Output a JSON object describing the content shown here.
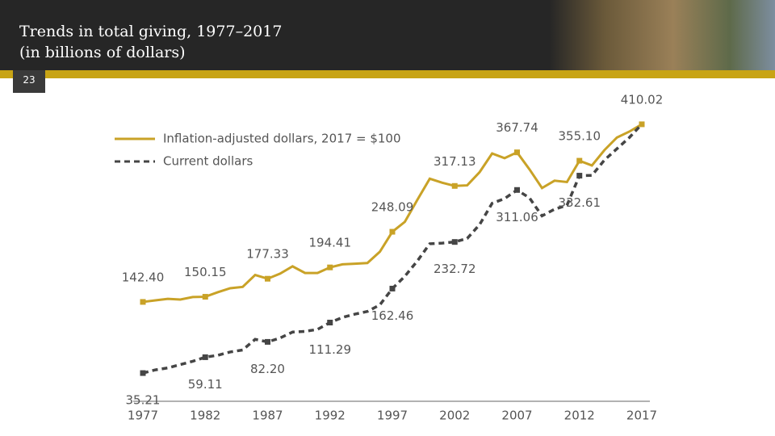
{
  "header": {
    "title": "Trends in total giving, 1977–2017",
    "subtitle": "(in billions of dollars)",
    "page_number": "23"
  },
  "chart_data": {
    "type": "line",
    "x": [
      1977,
      1978,
      1979,
      1980,
      1981,
      1982,
      1983,
      1984,
      1985,
      1986,
      1987,
      1988,
      1989,
      1990,
      1991,
      1992,
      1993,
      1994,
      1995,
      1996,
      1997,
      1998,
      1999,
      2000,
      2001,
      2002,
      2003,
      2004,
      2005,
      2006,
      2007,
      2008,
      2009,
      2010,
      2011,
      2012,
      2013,
      2014,
      2015,
      2016,
      2017
    ],
    "xlim": [
      1977,
      2017
    ],
    "xticks": [
      1977,
      1982,
      1987,
      1992,
      1997,
      2002,
      2007,
      2012,
      2017
    ],
    "ylim": [
      0,
      430
    ],
    "legend": "upper left",
    "series": [
      {
        "name": "Inflation-adjusted dollars, 2017 = $100",
        "color": "#c9a227",
        "dashed": false,
        "values": [
          142.4,
          144.8,
          147,
          146,
          149.7,
          150.15,
          157,
          163,
          165,
          183,
          177.33,
          185,
          196,
          186,
          186,
          194.41,
          199,
          200,
          201,
          218,
          248.09,
          263,
          296,
          328,
          322,
          317.13,
          318,
          338,
          366,
          359,
          367.74,
          342,
          314,
          325,
          323,
          355.1,
          348,
          371,
          390,
          399,
          410.02
        ],
        "value_labels": [
          "142.40",
          null,
          null,
          null,
          null,
          "150.15",
          null,
          null,
          null,
          null,
          "177.33",
          null,
          null,
          null,
          null,
          "194.41",
          null,
          null,
          null,
          null,
          "248.09",
          null,
          null,
          null,
          null,
          "317.13",
          null,
          null,
          null,
          null,
          "367.74",
          null,
          null,
          null,
          null,
          "355.10",
          null,
          null,
          null,
          null,
          "410.02"
        ]
      },
      {
        "name": "Current dollars",
        "color": "#454545",
        "dashed": true,
        "values": [
          35.21,
          40,
          43,
          48,
          53,
          59.11,
          62,
          67,
          70,
          86,
          82.2,
          88,
          97,
          98,
          101,
          111.29,
          119,
          124,
          128,
          138,
          162.46,
          181,
          204,
          230,
          231,
          232.72,
          238,
          259,
          291,
          298,
          311.06,
          299,
          272,
          282,
          288,
          332.61,
          333,
          356,
          373,
          390,
          410.02
        ],
        "value_labels": [
          "35.21",
          null,
          null,
          null,
          null,
          "59.11",
          null,
          null,
          null,
          null,
          "82.20",
          null,
          null,
          null,
          null,
          "111.29",
          null,
          null,
          null,
          null,
          "162.46",
          null,
          null,
          null,
          null,
          "232.72",
          null,
          null,
          null,
          null,
          "311.06",
          null,
          null,
          null,
          null,
          "332.61",
          null,
          null,
          null,
          null,
          null
        ]
      }
    ]
  }
}
